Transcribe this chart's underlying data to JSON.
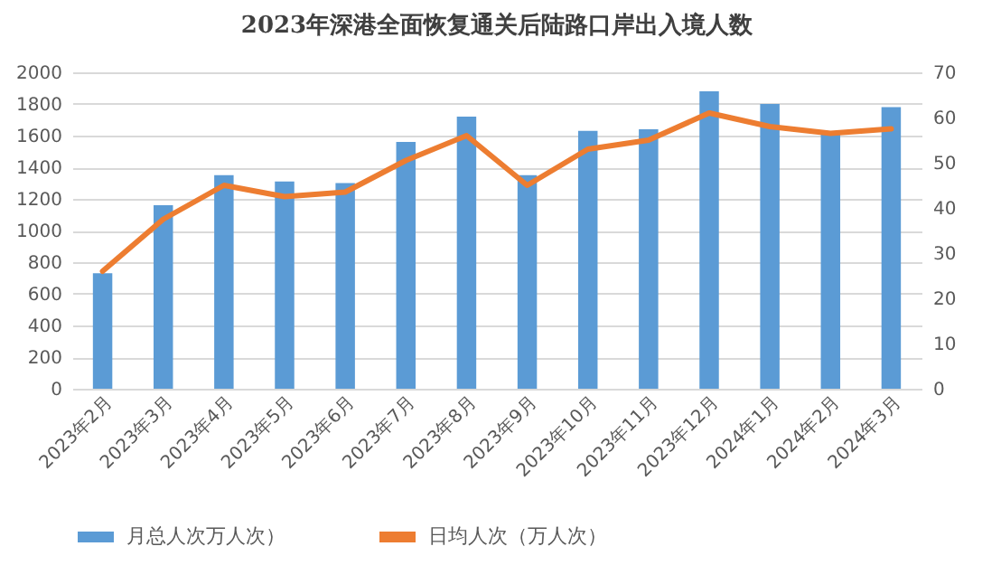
{
  "chart_data": {
    "type": "bar",
    "title": "2023年深港全面恢复通关后陆路口岸出入境人数",
    "categories": [
      "2023年2月",
      "2023年3月",
      "2023年4月",
      "2023年5月",
      "2023年6月",
      "2023年7月",
      "2023年8月",
      "2023年9月",
      "2023年10月",
      "2023年11月",
      "2023年12月",
      "2024年1月",
      "2024年2月",
      "2024年3月"
    ],
    "series": [
      {
        "name": "月总人次万人次）",
        "color": "#5b9bd5",
        "values": [
          730,
          1160,
          1350,
          1310,
          1300,
          1560,
          1720,
          1350,
          1630,
          1640,
          1880,
          1800,
          1620,
          1780
        ]
      },
      {
        "name": "日均人次（万人次）",
        "type": "line",
        "axis": "y2",
        "color": "#ed7d31",
        "values": [
          26,
          37.5,
          45,
          42.5,
          43.5,
          50.5,
          56,
          45,
          53,
          55,
          61,
          58,
          56.5,
          57.5
        ]
      }
    ],
    "ylim": [
      0,
      2000
    ],
    "yticks": [
      0,
      200,
      400,
      600,
      800,
      1000,
      1200,
      1400,
      1600,
      1800,
      2000
    ],
    "y2lim": [
      0,
      70
    ],
    "y2ticks": [
      0,
      10,
      20,
      30,
      40,
      50,
      60,
      70
    ],
    "grid": "y",
    "legend": "bottom",
    "marker": "none",
    "line_style": "solid"
  }
}
